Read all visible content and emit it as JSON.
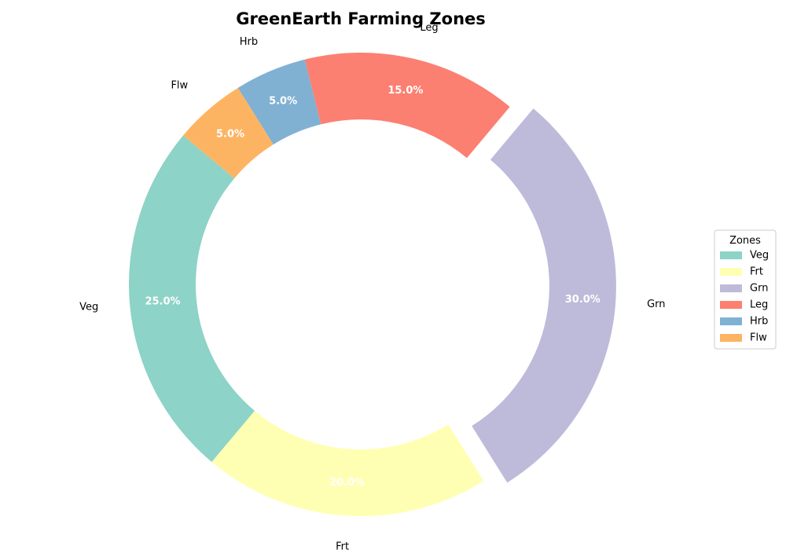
{
  "chart_data": {
    "type": "pie",
    "variant": "donut",
    "title": "GreenEarth Farming Zones",
    "categories": [
      "Veg",
      "Frt",
      "Grn",
      "Leg",
      "Hrb",
      "Flw"
    ],
    "values": [
      25.0,
      20.0,
      30.0,
      15.0,
      5.0,
      5.0
    ],
    "percent_labels": [
      "25.0%",
      "20.0%",
      "30.0%",
      "15.0%",
      "5.0%",
      "5.0%"
    ],
    "colors": [
      "#8dd3c7",
      "#ffffb3",
      "#bebada",
      "#fb8072",
      "#80b1d3",
      "#fdb462"
    ],
    "exploded": "Grn",
    "legend": {
      "title": "Zones",
      "placement": "right",
      "entries": [
        "Veg",
        "Frt",
        "Grn",
        "Leg",
        "Hrb",
        "Flw"
      ]
    }
  }
}
